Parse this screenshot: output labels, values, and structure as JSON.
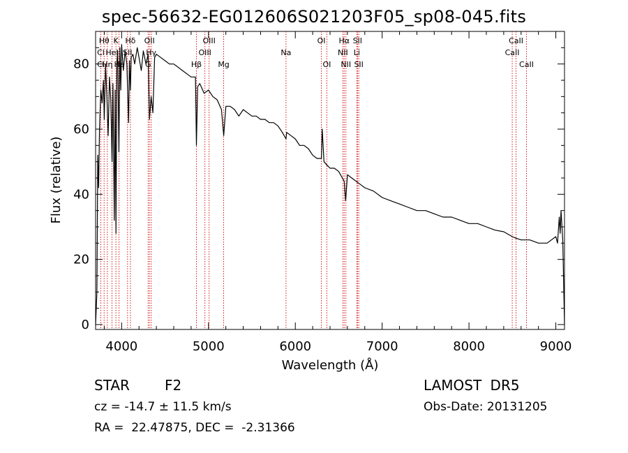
{
  "title": "spec-56632-EG012606S021203F05_sp08-045.fits",
  "footer": {
    "left": {
      "class_label": "STAR",
      "subclass": "F2",
      "cz": "cz = -14.7 ± 11.5 km/s",
      "coords": "RA =  22.47875, DEC =  -2.31366"
    },
    "right": {
      "survey": "LAMOST DR5",
      "obs_date": "Obs-Date: 20131205"
    }
  },
  "colors": {
    "spectrum": "#000000",
    "line_marker": "#cc0000",
    "axis": "#000000"
  },
  "chart_data": {
    "type": "line",
    "title": "spec-56632-EG012606S021203F05_sp08-045.fits",
    "xlabel": "Wavelength (Å)",
    "ylabel": "Flux (relative)",
    "xlim": [
      3700,
      9100
    ],
    "ylim": [
      -1.5,
      90
    ],
    "xticks": [
      4000,
      5000,
      6000,
      7000,
      8000,
      9000
    ],
    "yticks": [
      0,
      20,
      40,
      60,
      80
    ],
    "grid": false,
    "series": [
      {
        "x": [
          3700,
          3715,
          3725,
          3735,
          3745,
          3760,
          3775,
          3790,
          3800,
          3815,
          3830,
          3845,
          3860,
          3875,
          3890,
          3900,
          3915,
          3925,
          3935,
          3945,
          3955,
          3968,
          3980,
          3990,
          4000,
          4020,
          4040,
          4060,
          4080,
          4090,
          4101,
          4110,
          4130,
          4150,
          4180,
          4200,
          4226,
          4250,
          4280,
          4305,
          4320,
          4340,
          4360,
          4380,
          4400,
          4450,
          4500,
          4550,
          4600,
          4650,
          4700,
          4750,
          4800,
          4850,
          4861,
          4875,
          4900,
          4950,
          5000,
          5050,
          5100,
          5150,
          5175,
          5200,
          5250,
          5300,
          5350,
          5400,
          5450,
          5500,
          5550,
          5600,
          5650,
          5700,
          5750,
          5800,
          5850,
          5893,
          5900,
          5950,
          6000,
          6050,
          6100,
          6150,
          6200,
          6250,
          6300,
          6310,
          6330,
          6363,
          6400,
          6450,
          6500,
          6563,
          6580,
          6600,
          6650,
          6700,
          6750,
          6800,
          6900,
          7000,
          7100,
          7200,
          7300,
          7400,
          7500,
          7600,
          7700,
          7800,
          7900,
          8000,
          8100,
          8200,
          8300,
          8400,
          8498,
          8542,
          8600,
          8662,
          8700,
          8800,
          8900,
          8950,
          9000,
          9020,
          9040,
          9050,
          9060,
          9080,
          9100
        ],
        "y": [
          0,
          10,
          52,
          42,
          60,
          72,
          68,
          75,
          63,
          80,
          70,
          58,
          76,
          69,
          50,
          74,
          32,
          72,
          28,
          80,
          84,
          53,
          85,
          72,
          86,
          78,
          84,
          80,
          62,
          81,
          72,
          82,
          83,
          80,
          85,
          82,
          78,
          84,
          80,
          83,
          63,
          70,
          65,
          82,
          83,
          82,
          81,
          80,
          80,
          79,
          78,
          77,
          76,
          76,
          55,
          73,
          74,
          71,
          72,
          70,
          69,
          66,
          58,
          67,
          67,
          66,
          64,
          66,
          65,
          64,
          64,
          63,
          63,
          62,
          62,
          61,
          59,
          57,
          59,
          58,
          57,
          55,
          55,
          54,
          52,
          51,
          51,
          60,
          50,
          49,
          48,
          48,
          47,
          44,
          38,
          46,
          45,
          44,
          43,
          42,
          41,
          39,
          38,
          37,
          36,
          35,
          35,
          34,
          33,
          33,
          32,
          31,
          31,
          30,
          29,
          28.5,
          27,
          26.5,
          26,
          26,
          26,
          25,
          25,
          26,
          27,
          25,
          33,
          28,
          35,
          26,
          0
        ]
      }
    ],
    "annotations": [
      {
        "label": "Hθ",
        "x": 3798,
        "row": 0
      },
      {
        "label": "Cl",
        "x": 3760,
        "row": 1
      },
      {
        "label": "Cl",
        "x": 3760,
        "row": 2
      },
      {
        "label": "Hη",
        "x": 3835,
        "row": 2
      },
      {
        "label": "K",
        "x": 3934,
        "row": 0
      },
      {
        "label": "HeI",
        "x": 3889,
        "row": 1
      },
      {
        "label": "Hε",
        "x": 3970,
        "row": 2
      },
      {
        "label": "Hδ",
        "x": 4101,
        "row": 0
      },
      {
        "label": "SII",
        "x": 4068,
        "row": 1
      },
      {
        "label": "OII",
        "x": 4320,
        "row": 0
      },
      {
        "label": "Hγ",
        "x": 4340,
        "row": 1
      },
      {
        "label": "G",
        "x": 4305,
        "row": 2
      },
      {
        "label": "Hβ",
        "x": 4861,
        "row": 2
      },
      {
        "label": "OIII",
        "x": 5007,
        "row": 0
      },
      {
        "label": "OIII",
        "x": 4959,
        "row": 1
      },
      {
        "label": "Mg",
        "x": 5175,
        "row": 2
      },
      {
        "label": "Na",
        "x": 5893,
        "row": 1
      },
      {
        "label": "OI",
        "x": 6300,
        "row": 0
      },
      {
        "label": "OI",
        "x": 6363,
        "row": 2
      },
      {
        "label": "Hα",
        "x": 6563,
        "row": 0
      },
      {
        "label": "SII",
        "x": 6716,
        "row": 0
      },
      {
        "label": "NII",
        "x": 6548,
        "row": 1
      },
      {
        "label": "Li",
        "x": 6708,
        "row": 1
      },
      {
        "label": "NII",
        "x": 6583,
        "row": 2
      },
      {
        "label": "SII",
        "x": 6731,
        "row": 2
      },
      {
        "label": "CaII",
        "x": 8542,
        "row": 0
      },
      {
        "label": "CaII",
        "x": 8498,
        "row": 1
      },
      {
        "label": "CaII",
        "x": 8662,
        "row": 2
      }
    ],
    "line_markers": [
      3760,
      3798,
      3835,
      3889,
      3934,
      3970,
      4068,
      4101,
      4305,
      4320,
      4340,
      4861,
      4959,
      5007,
      5175,
      5893,
      6300,
      6363,
      6548,
      6563,
      6583,
      6708,
      6716,
      6731,
      8498,
      8542,
      8662
    ]
  }
}
